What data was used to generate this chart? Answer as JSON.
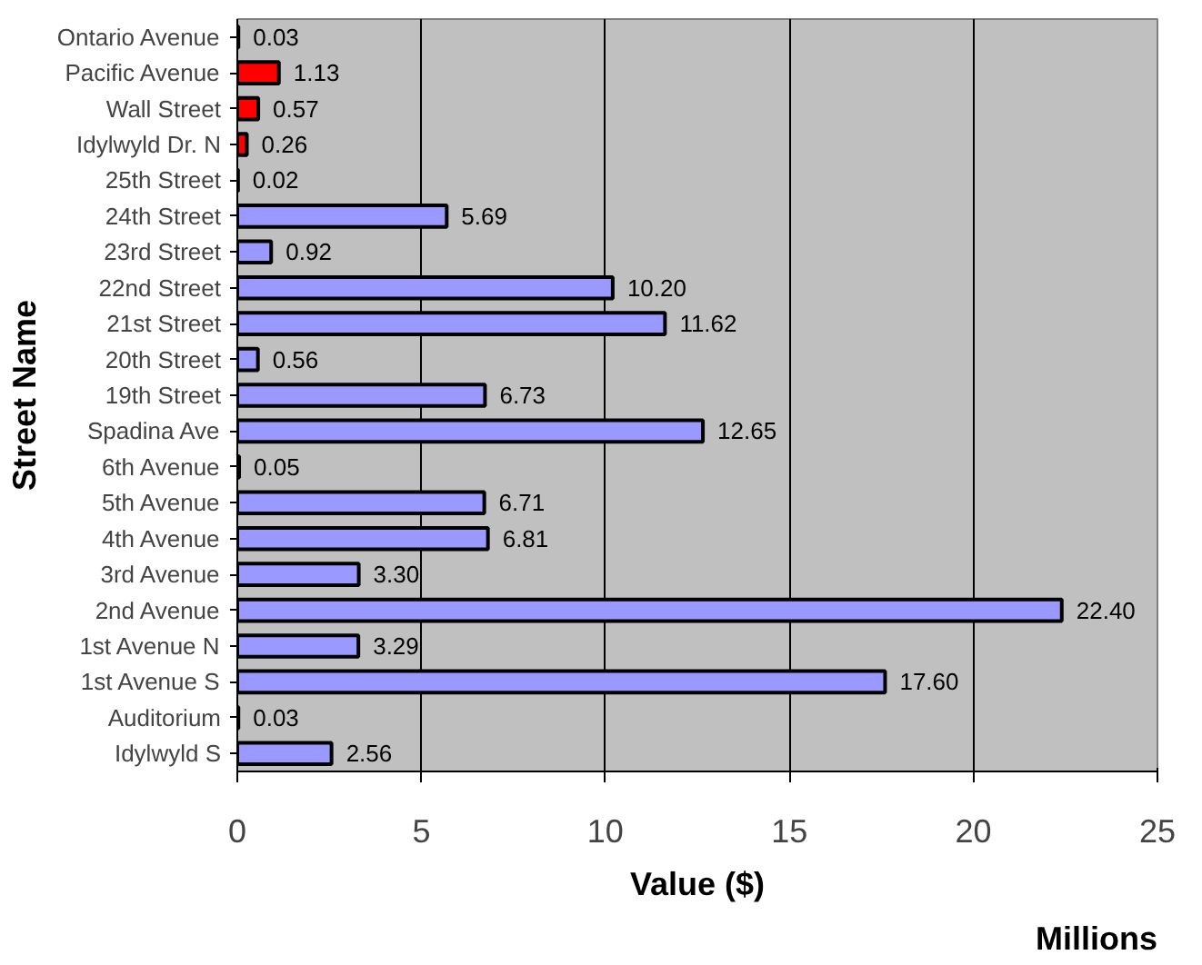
{
  "chart_data": {
    "type": "bar",
    "orientation": "horizontal",
    "xlabel": "Value ($)",
    "ylabel": "Street Name",
    "categories": [
      "Ontario Avenue",
      "Pacific Avenue",
      "Wall Street",
      "Idylwyld Dr. N",
      "25th Street",
      "24th Street",
      "23rd Street",
      "22nd Street",
      "21st Street",
      "20th Street",
      "19th Street",
      "Spadina Ave",
      "6th Avenue",
      "5th Avenue",
      "4th Avenue",
      "3rd Avenue",
      "2nd Avenue",
      "1st Avenue N",
      "1st Avenue S",
      "Auditorium",
      "Idylwyld S"
    ],
    "values": [
      0.03,
      1.13,
      0.57,
      0.26,
      0.02,
      5.69,
      0.92,
      10.2,
      11.62,
      0.56,
      6.73,
      12.65,
      0.05,
      6.71,
      6.81,
      3.3,
      22.4,
      3.29,
      17.6,
      0.03,
      2.56
    ],
    "value_labels": [
      "0.03",
      "1.13",
      "0.57",
      "0.26",
      "0.02",
      "5.69",
      "0.92",
      "10.20",
      "11.62",
      "0.56",
      "6.73",
      "12.65",
      "0.05",
      "6.71",
      "6.81",
      "3.30",
      "22.40",
      "3.29",
      "17.60",
      "0.03",
      "2.56"
    ],
    "colors": [
      "#ff0000",
      "#ff0000",
      "#ff0000",
      "#ff0000",
      "#9999ff",
      "#9999ff",
      "#9999ff",
      "#9999ff",
      "#9999ff",
      "#9999ff",
      "#9999ff",
      "#9999ff",
      "#9999ff",
      "#9999ff",
      "#9999ff",
      "#9999ff",
      "#9999ff",
      "#9999ff",
      "#9999ff",
      "#9999ff",
      "#9999ff"
    ],
    "xlim": [
      0,
      25
    ],
    "xticks": [
      0,
      5,
      10,
      15,
      20,
      25
    ],
    "grid": "x",
    "annotations": [
      "Millions"
    ]
  }
}
